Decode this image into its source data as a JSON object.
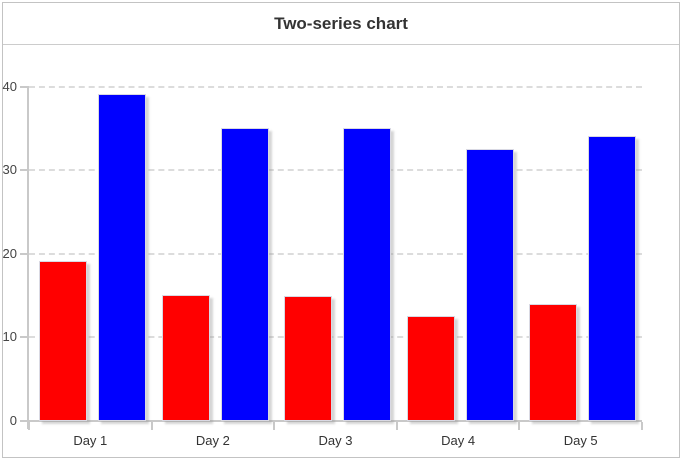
{
  "header": {
    "title": "Two-series chart"
  },
  "chart_data": {
    "type": "bar",
    "title": "Two-series chart",
    "categories": [
      "Day 1",
      "Day 2",
      "Day 3",
      "Day 4",
      "Day 5"
    ],
    "series": [
      {
        "name": "red",
        "color": "#ff0000",
        "values": [
          19.1,
          15.1,
          14.9,
          12.6,
          14.0
        ]
      },
      {
        "name": "blue",
        "color": "#0000ff",
        "values": [
          39.1,
          35.0,
          35.0,
          32.5,
          34.1
        ]
      }
    ],
    "xlabel": "",
    "ylabel": "",
    "ylim": [
      0,
      40
    ],
    "yticks": [
      0,
      10,
      20,
      30,
      40
    ],
    "grid": true,
    "grid_style": "dashed",
    "legend": "none",
    "bar_colors": {
      "red": "#ff0000",
      "blue": "#0000ff"
    },
    "axis_color": "#c9c9c9",
    "grid_color": "#dcdcdc",
    "tick_label_color": "#444444",
    "title_color": "#333333"
  }
}
